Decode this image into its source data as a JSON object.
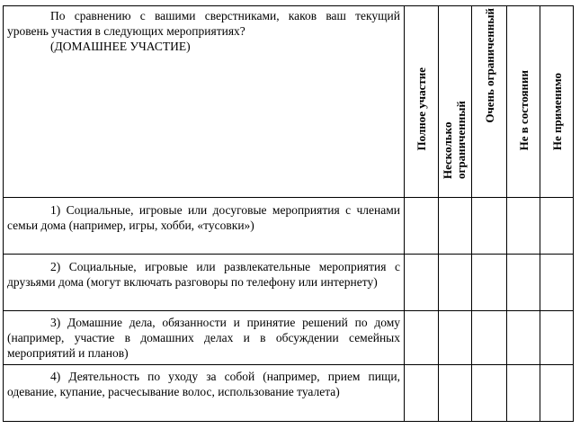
{
  "question": {
    "line1": "По сравнению с вашими сверстниками, каков ваш текущий уровень участия в следующих мероприятиях?",
    "section": "(ДОМАШНЕЕ УЧАСТИЕ)"
  },
  "columns": [
    {
      "label": "Полное участие"
    },
    {
      "label": "Несколько ограниченный"
    },
    {
      "label": "Очень ограниченный"
    },
    {
      "label": "Не в состоянии"
    },
    {
      "label": "Не применимо"
    }
  ],
  "rows": [
    {
      "text": "1) Социальные, игровые или досуговые мероприятия с членами семьи дома (например, игры, хобби, «тусовки»)"
    },
    {
      "text": "2) Социальные, игровые или развлекательные мероприятия с друзьями дома (могут включать разговоры по телефону или интернету)"
    },
    {
      "text": "3) Домашние дела, обязанности и принятие решений по дому (например, участие в домашних делах и в обсуждении семейных мероприятий и планов)"
    },
    {
      "text": "4) Деятельность по уходу за собой (например, прием пищи, одевание, купание, расчесывание волос, использование туалета)"
    }
  ]
}
